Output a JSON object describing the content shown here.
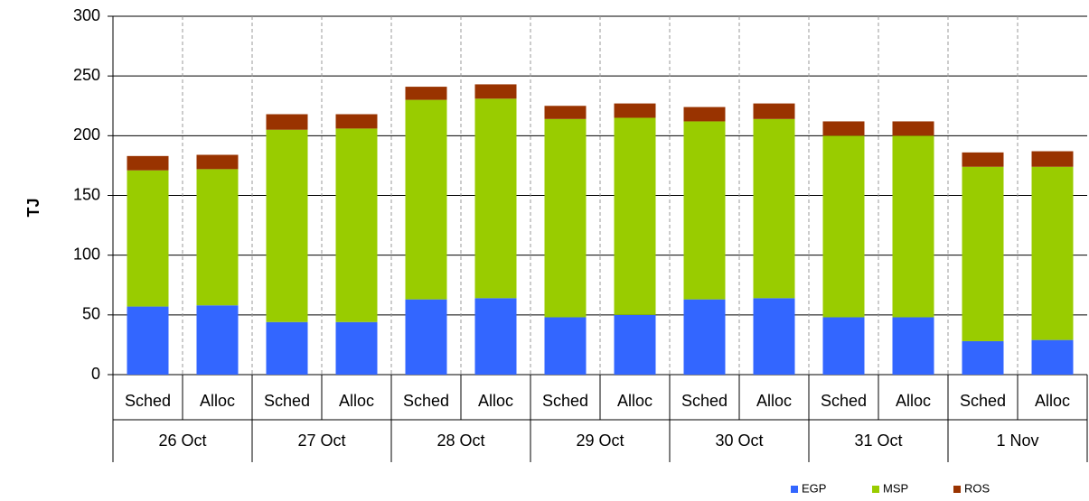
{
  "chart_data": {
    "type": "stacked-bar",
    "y_label": "TJ",
    "categories": [
      "Sched",
      "Alloc",
      "Sched",
      "Alloc",
      "Sched",
      "Alloc",
      "Sched",
      "Alloc",
      "Sched",
      "Alloc",
      "Sched",
      "Alloc",
      "Sched",
      "Alloc"
    ],
    "groups": [
      "26 Oct",
      "27 Oct",
      "28 Oct",
      "29 Oct",
      "30 Oct",
      "31 Oct",
      "1 Nov"
    ],
    "series": [
      {
        "name": "EGP",
        "color": "#3366ff",
        "values": [
          57,
          58,
          44,
          44,
          63,
          64,
          48,
          50,
          63,
          64,
          48,
          48,
          28,
          29
        ]
      },
      {
        "name": "MSP",
        "color": "#99cc00",
        "values": [
          114,
          114,
          161,
          162,
          167,
          167,
          166,
          165,
          149,
          150,
          152,
          152,
          146,
          145
        ]
      },
      {
        "name": "ROS",
        "color": "#993300",
        "values": [
          12,
          12,
          13,
          12,
          11,
          12,
          11,
          12,
          12,
          13,
          12,
          12,
          12,
          13
        ]
      }
    ],
    "ylim": [
      0,
      300
    ],
    "yticks": [
      0,
      50,
      100,
      150,
      200,
      250,
      300
    ],
    "grid": true,
    "legend": "bottom-right"
  }
}
